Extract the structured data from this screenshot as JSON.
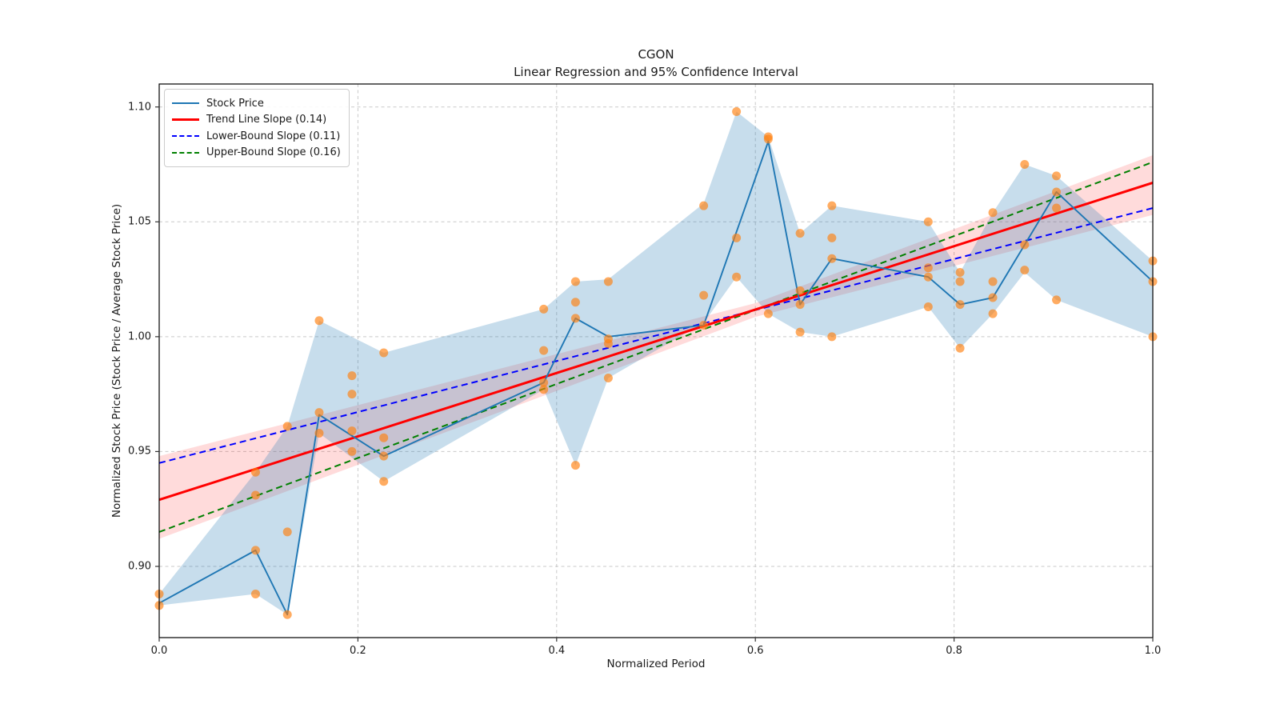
{
  "title": "CGON",
  "subtitle": "Linear Regression and 95% Confidence Interval",
  "axes": {
    "xlabel": "Normalized Period",
    "ylabel": "Normalized Stock Price (Stock Price / Average Stock Price)",
    "x_tick_labels": [
      "0.0",
      "0.2",
      "0.4",
      "0.6",
      "0.8",
      "1.0"
    ],
    "y_tick_labels": [
      "0.90",
      "0.95",
      "1.00",
      "1.05",
      "1.10"
    ]
  },
  "legend": {
    "items": [
      {
        "label": "Stock Price",
        "color": "#1f77b4",
        "style": "solid"
      },
      {
        "label": "Trend Line Slope (0.14)",
        "color": "#ff0000",
        "style": "solid"
      },
      {
        "label": "Lower-Bound Slope (0.11)",
        "color": "#0000ff",
        "style": "dashed"
      },
      {
        "label": "Upper-Bound Slope (0.16)",
        "color": "#008000",
        "style": "dashed"
      }
    ]
  },
  "chart_data": {
    "type": "line",
    "title": "CGON",
    "subtitle": "Linear Regression and 95% Confidence Interval",
    "xlabel": "Normalized Period",
    "ylabel": "Normalized Stock Price (Stock Price / Average Stock Price)",
    "xlim": [
      0.0,
      1.0
    ],
    "ylim": [
      0.869,
      1.11
    ],
    "x_ticks": [
      0.0,
      0.2,
      0.4,
      0.6,
      0.8,
      1.0
    ],
    "y_ticks": [
      0.9,
      0.95,
      1.0,
      1.05,
      1.1
    ],
    "grid": true,
    "legend_position": "upper left",
    "colors": {
      "stock_line": "#1f77b4",
      "scatter": "#ff7f0e",
      "trend": "#ff0000",
      "lower_bound": "#0000ff",
      "upper_bound": "#008000",
      "stock_band_fill": "rgba(31,119,180,0.25)",
      "trend_band_fill": "rgba(255,0,0,0.14)",
      "grid_color": "#c0c0c0"
    },
    "stock_line": {
      "name": "Stock Price",
      "x": [
        0.0,
        0.097,
        0.129,
        0.161,
        0.226,
        0.387,
        0.419,
        0.452,
        0.548,
        0.613,
        0.645,
        0.677,
        0.774,
        0.806,
        0.839,
        0.871,
        0.903,
        1.0
      ],
      "y": [
        0.884,
        0.907,
        0.879,
        0.966,
        0.948,
        0.98,
        1.008,
        1.0,
        1.005,
        1.085,
        1.014,
        1.034,
        1.026,
        1.014,
        1.017,
        1.04,
        1.063,
        1.024
      ]
    },
    "scatter": {
      "name": "Daily normalized prices",
      "points": [
        [
          0.0,
          0.888
        ],
        [
          0.0,
          0.883
        ],
        [
          0.097,
          0.941
        ],
        [
          0.097,
          0.931
        ],
        [
          0.097,
          0.907
        ],
        [
          0.097,
          0.888
        ],
        [
          0.129,
          0.961
        ],
        [
          0.129,
          0.915
        ],
        [
          0.129,
          0.879
        ],
        [
          0.161,
          1.007
        ],
        [
          0.161,
          0.967
        ],
        [
          0.161,
          0.958
        ],
        [
          0.194,
          0.983
        ],
        [
          0.194,
          0.975
        ],
        [
          0.194,
          0.959
        ],
        [
          0.194,
          0.95
        ],
        [
          0.226,
          0.993
        ],
        [
          0.226,
          0.956
        ],
        [
          0.226,
          0.948
        ],
        [
          0.226,
          0.937
        ],
        [
          0.387,
          1.012
        ],
        [
          0.387,
          0.994
        ],
        [
          0.387,
          0.98
        ],
        [
          0.387,
          0.977
        ],
        [
          0.419,
          1.024
        ],
        [
          0.419,
          1.015
        ],
        [
          0.419,
          1.008
        ],
        [
          0.419,
          0.944
        ],
        [
          0.452,
          1.024
        ],
        [
          0.452,
          0.999
        ],
        [
          0.452,
          0.997
        ],
        [
          0.452,
          0.982
        ],
        [
          0.548,
          1.057
        ],
        [
          0.548,
          1.018
        ],
        [
          0.548,
          1.005
        ],
        [
          0.581,
          1.098
        ],
        [
          0.581,
          1.043
        ],
        [
          0.581,
          1.026
        ],
        [
          0.613,
          1.087
        ],
        [
          0.613,
          1.086
        ],
        [
          0.613,
          1.01
        ],
        [
          0.645,
          1.045
        ],
        [
          0.645,
          1.02
        ],
        [
          0.645,
          1.014
        ],
        [
          0.645,
          1.002
        ],
        [
          0.677,
          1.057
        ],
        [
          0.677,
          1.043
        ],
        [
          0.677,
          1.034
        ],
        [
          0.677,
          1.0
        ],
        [
          0.774,
          1.05
        ],
        [
          0.774,
          1.03
        ],
        [
          0.774,
          1.026
        ],
        [
          0.774,
          1.013
        ],
        [
          0.806,
          1.028
        ],
        [
          0.806,
          1.024
        ],
        [
          0.806,
          1.014
        ],
        [
          0.806,
          0.995
        ],
        [
          0.839,
          1.054
        ],
        [
          0.839,
          1.024
        ],
        [
          0.839,
          1.017
        ],
        [
          0.839,
          1.01
        ],
        [
          0.871,
          1.075
        ],
        [
          0.871,
          1.04
        ],
        [
          0.871,
          1.029
        ],
        [
          0.903,
          1.07
        ],
        [
          0.903,
          1.063
        ],
        [
          0.903,
          1.056
        ],
        [
          0.903,
          1.016
        ],
        [
          1.0,
          1.033
        ],
        [
          1.0,
          1.024
        ],
        [
          1.0,
          1.0
        ]
      ]
    },
    "stock_band": {
      "x": [
        0.0,
        0.097,
        0.129,
        0.161,
        0.226,
        0.387,
        0.419,
        0.452,
        0.548,
        0.581,
        0.613,
        0.645,
        0.677,
        0.774,
        0.806,
        0.839,
        0.871,
        0.903,
        1.0
      ],
      "upper": [
        0.888,
        0.941,
        0.961,
        1.007,
        0.993,
        1.012,
        1.024,
        1.025,
        1.058,
        1.098,
        1.087,
        1.045,
        1.057,
        1.05,
        1.028,
        1.054,
        1.075,
        1.07,
        1.033
      ],
      "lower": [
        0.883,
        0.888,
        0.879,
        0.958,
        0.937,
        0.977,
        0.944,
        0.982,
        1.006,
        1.026,
        1.01,
        1.002,
        1.0,
        1.013,
        0.995,
        1.01,
        1.028,
        1.016,
        1.0
      ]
    },
    "trend_line": {
      "name": "Trend Line",
      "slope": 0.14,
      "x": [
        0.0,
        1.0
      ],
      "y": [
        0.929,
        1.067
      ]
    },
    "lower_bound": {
      "name": "Lower-Bound",
      "slope": 0.11,
      "x": [
        0.0,
        1.0
      ],
      "y": [
        0.945,
        1.056
      ]
    },
    "upper_bound": {
      "name": "Upper-Bound",
      "slope": 0.16,
      "x": [
        0.0,
        1.0
      ],
      "y": [
        0.915,
        1.076
      ]
    },
    "trend_band_pad": 0.003
  }
}
